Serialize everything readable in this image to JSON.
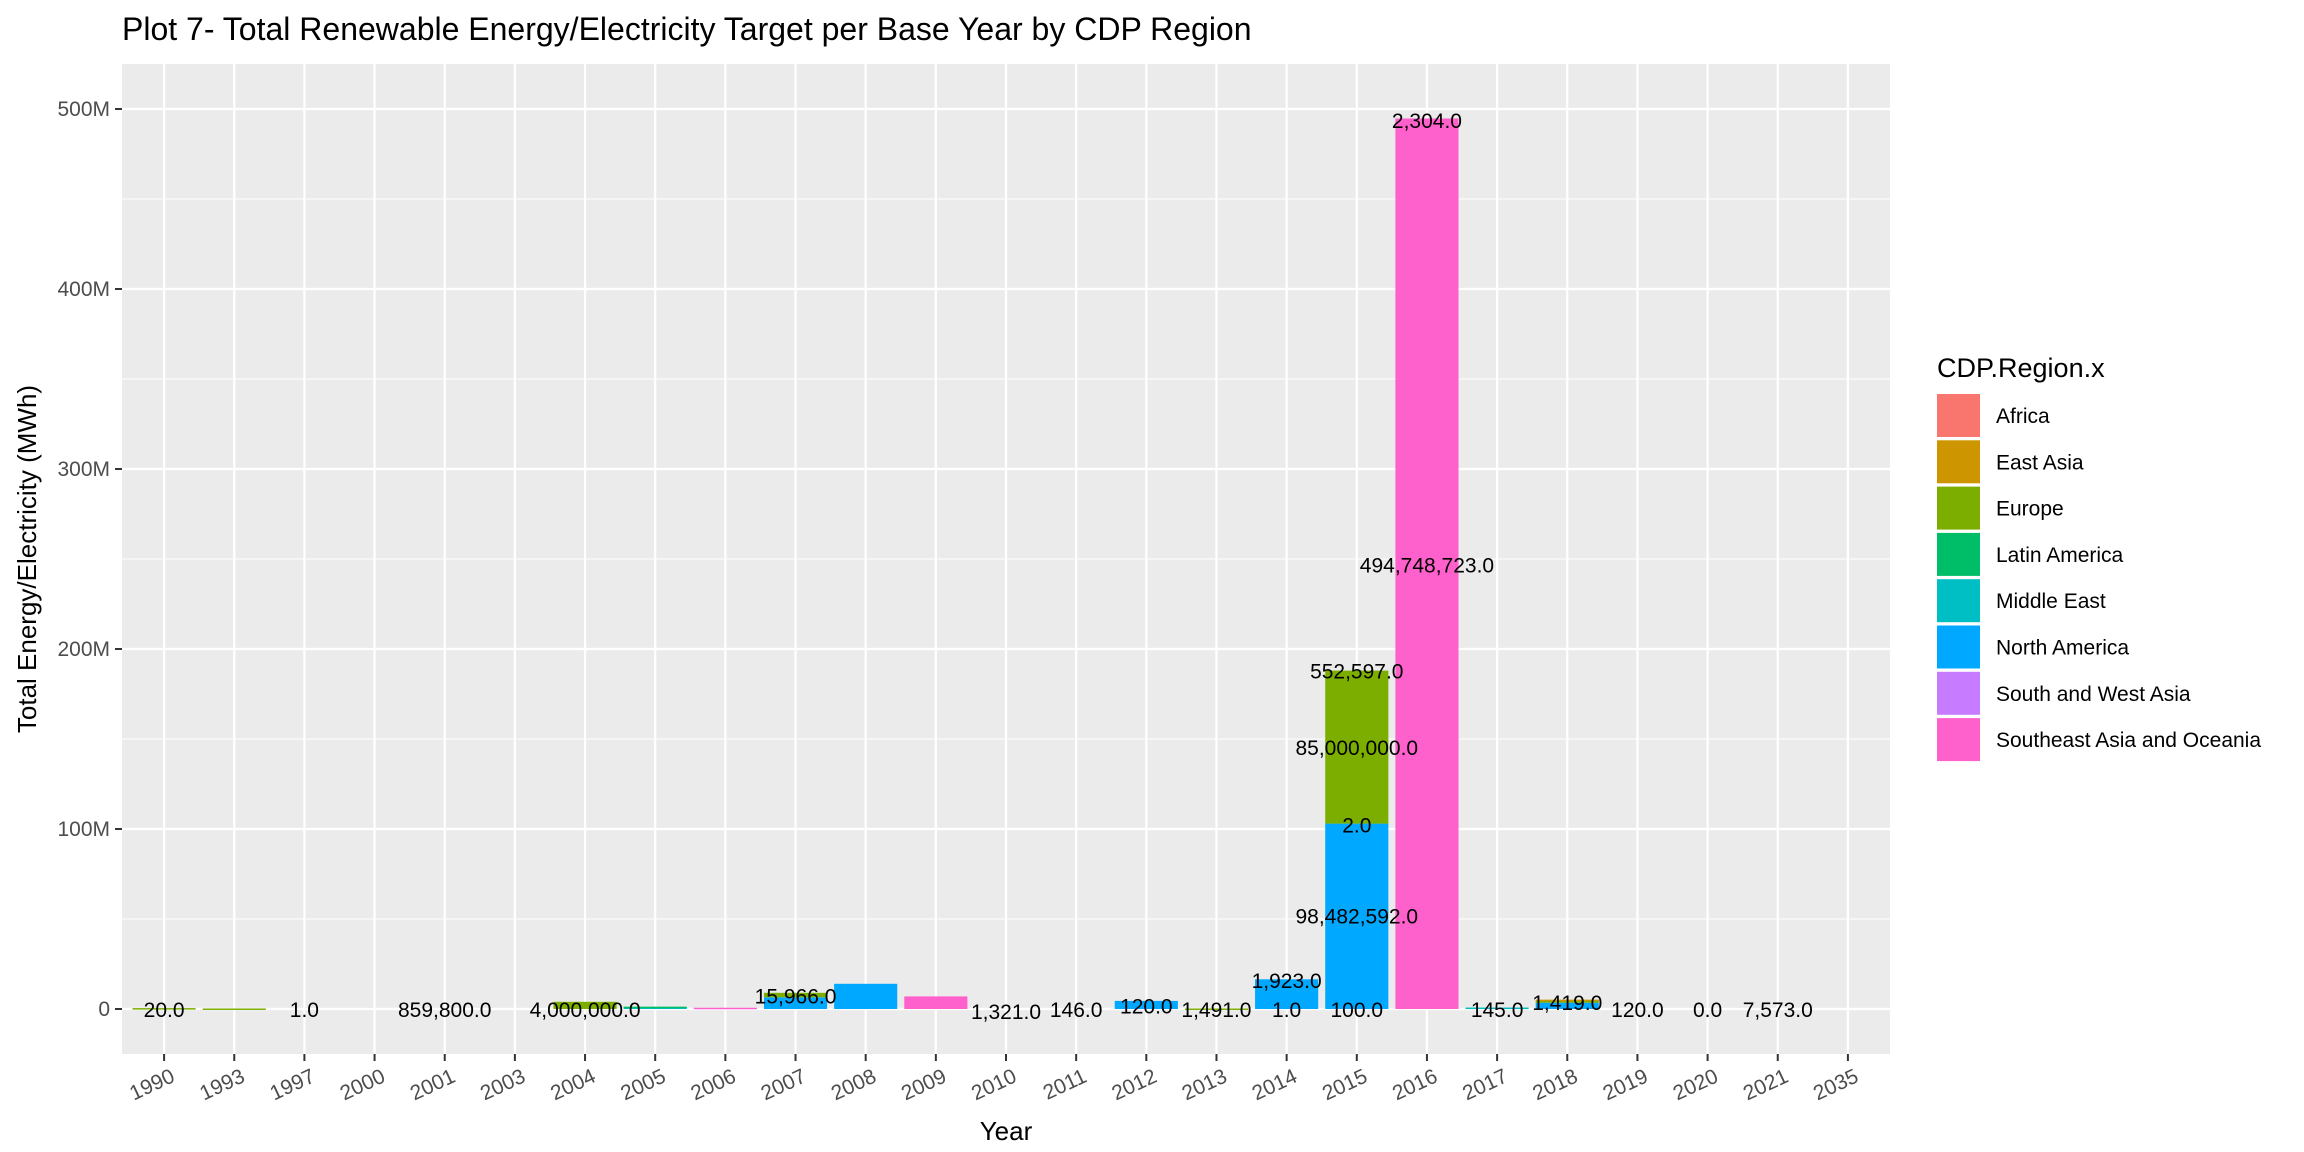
{
  "chart_data": {
    "type": "bar",
    "stacked": true,
    "title": "Plot 7- Total Renewable Energy/Electricity Target per Base Year by CDP Region",
    "xlabel": "Year",
    "ylabel": "Total Energy/Electricity (MWh)",
    "ylim": [
      -25000000,
      525000000
    ],
    "y_ticks": [
      {
        "value": 0,
        "label": "0"
      },
      {
        "value": 100000000,
        "label": "100M"
      },
      {
        "value": 200000000,
        "label": "200M"
      },
      {
        "value": 300000000,
        "label": "300M"
      },
      {
        "value": 400000000,
        "label": "400M"
      },
      {
        "value": 500000000,
        "label": "500M"
      }
    ],
    "grid": true,
    "legend": {
      "title": "CDP.Region.x",
      "position": "right"
    },
    "categories": [
      "1990",
      "1993",
      "1997",
      "2000",
      "2001",
      "2003",
      "2004",
      "2005",
      "2006",
      "2007",
      "2008",
      "2009",
      "2010",
      "2011",
      "2012",
      "2013",
      "2014",
      "2015",
      "2016",
      "2017",
      "2018",
      "2019",
      "2020",
      "2021",
      "2035"
    ],
    "series": [
      {
        "name": "Africa",
        "color": "#F8766D",
        "values": [
          0,
          0,
          0,
          0,
          0,
          0,
          0,
          0,
          0,
          0,
          0,
          0,
          0,
          0,
          0,
          0,
          0,
          0,
          0,
          0,
          0,
          0,
          0,
          0,
          0
        ]
      },
      {
        "name": "East Asia",
        "color": "#CD9600",
        "values": [
          0,
          0,
          0,
          0,
          0,
          0,
          0,
          0,
          0,
          0,
          0,
          0,
          0,
          0,
          0,
          0,
          0,
          0,
          0,
          0,
          500000,
          0,
          0,
          0,
          0
        ]
      },
      {
        "name": "Europe",
        "color": "#7CAE00",
        "values": [
          500000,
          300000,
          0,
          0,
          0,
          0,
          4000000,
          0,
          0,
          2500000,
          0,
          0,
          0,
          0,
          0,
          300000,
          0,
          85000000,
          0,
          0,
          1200000,
          0,
          0,
          0,
          0
        ]
      },
      {
        "name": "Latin America",
        "color": "#00BE67",
        "values": [
          0,
          0,
          0,
          0,
          0,
          0,
          0,
          300000,
          0,
          0,
          0,
          0,
          0,
          0,
          0,
          0,
          0,
          0,
          0,
          0,
          0,
          0,
          0,
          0,
          0
        ]
      },
      {
        "name": "Middle East",
        "color": "#00BFC4",
        "values": [
          0,
          0,
          0,
          0,
          0,
          0,
          0,
          1000000,
          0,
          0,
          0,
          0,
          0,
          0,
          0,
          0,
          0,
          0,
          0,
          800000,
          0,
          0,
          0,
          0,
          0
        ]
      },
      {
        "name": "North America",
        "color": "#00A9FF",
        "values": [
          0,
          0,
          0,
          0,
          0,
          0,
          0,
          0,
          0,
          6500000,
          14000000,
          0,
          0,
          0,
          4500000,
          0,
          16500000,
          103000000,
          0,
          0,
          3500000,
          0,
          0,
          0,
          0
        ]
      },
      {
        "name": "South and West Asia",
        "color": "#C77CFF",
        "values": [
          0,
          0,
          0,
          0,
          0,
          0,
          0,
          0,
          0,
          0,
          0,
          0,
          0,
          0,
          0,
          0,
          0,
          0,
          0,
          0,
          0,
          0,
          0,
          0,
          0
        ]
      },
      {
        "name": "Southeast Asia and Oceania",
        "color": "#FF61CC",
        "values": [
          0,
          0,
          0,
          0,
          0,
          0,
          0,
          0,
          700000,
          0,
          0,
          7000000,
          0,
          0,
          0,
          0,
          0,
          0,
          494748723,
          0,
          0,
          0,
          0,
          0,
          0
        ]
      }
    ],
    "annotations": [
      {
        "x": "1990",
        "label": "20.0",
        "y": 0
      },
      {
        "x": "1997",
        "label": "1.0",
        "y": 0
      },
      {
        "x": "2001",
        "label": "859,800.0",
        "y": 0
      },
      {
        "x": "2004",
        "label": "4,000,000.0",
        "y": 0
      },
      {
        "x": "2007",
        "label": "15,966.0",
        "y": 7500000
      },
      {
        "x": "2010",
        "label": "1,321.0",
        "y": -1000000
      },
      {
        "x": "2011",
        "label": "146.0",
        "y": 0
      },
      {
        "x": "2012",
        "label": "120.0",
        "y": 2000000
      },
      {
        "x": "2013",
        "label": "1,491.0",
        "y": 0
      },
      {
        "x": "2014",
        "label": "1,923.0",
        "y": 16000000
      },
      {
        "x": "2014",
        "label": "1.0",
        "y": 0
      },
      {
        "x": "2015",
        "label": "552,597.0",
        "y": 188000000
      },
      {
        "x": "2015",
        "label": "85,000,000.0",
        "y": 145500000
      },
      {
        "x": "2015",
        "label": "2.0",
        "y": 102500000
      },
      {
        "x": "2015",
        "label": "98,482,592.0",
        "y": 52000000
      },
      {
        "x": "2015",
        "label": "100.0",
        "y": 0
      },
      {
        "x": "2016",
        "label": "2,304.0",
        "y": 494000000
      },
      {
        "x": "2016",
        "label": "494,748,723.0",
        "y": 247000000
      },
      {
        "x": "2017",
        "label": "145.0",
        "y": 0
      },
      {
        "x": "2018",
        "label": "1,419.0",
        "y": 4000000
      },
      {
        "x": "2019",
        "label": "120.0",
        "y": 0
      },
      {
        "x": "2020",
        "label": "0.0",
        "y": 0
      },
      {
        "x": "2021",
        "label": "7,573.0",
        "y": 0
      }
    ]
  }
}
